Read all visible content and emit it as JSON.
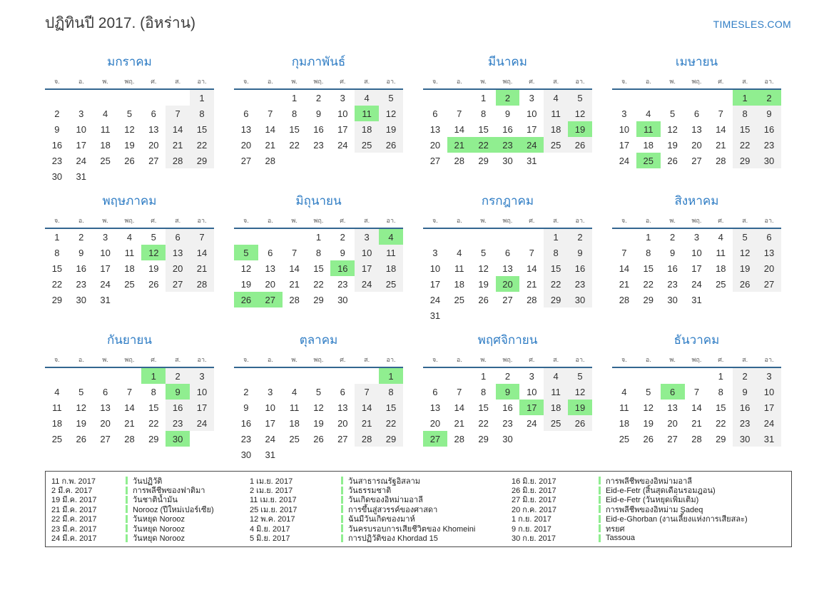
{
  "header": {
    "title": "ปฏิทินปี 2017. (อิหร่าน)",
    "site": "TIMESLES.COM"
  },
  "colors": {
    "accent_blue": "#2e7cc4",
    "header_line_blue": "#336690",
    "holiday_green": "#90ee90",
    "weekend_gray": "#f1f1f1"
  },
  "day_headers": [
    "จ.",
    "อ.",
    "พ.",
    "พฤ.",
    "ศ.",
    "ส.",
    "อา."
  ],
  "months": [
    {
      "key": "january",
      "name": "มกราคม",
      "holidays": [],
      "weeks": [
        [
          null,
          null,
          null,
          null,
          null,
          null,
          1
        ],
        [
          2,
          3,
          4,
          5,
          6,
          7,
          8
        ],
        [
          9,
          10,
          11,
          12,
          13,
          14,
          15
        ],
        [
          16,
          17,
          18,
          19,
          20,
          21,
          22
        ],
        [
          23,
          24,
          25,
          26,
          27,
          28,
          29
        ],
        [
          30,
          31,
          null,
          null,
          null,
          null,
          null
        ]
      ]
    },
    {
      "key": "february",
      "name": "กุมภาพันธ์",
      "holidays": [
        11
      ],
      "weeks": [
        [
          null,
          null,
          1,
          2,
          3,
          4,
          5
        ],
        [
          6,
          7,
          8,
          9,
          10,
          11,
          12
        ],
        [
          13,
          14,
          15,
          16,
          17,
          18,
          19
        ],
        [
          20,
          21,
          22,
          23,
          24,
          25,
          26
        ],
        [
          27,
          28,
          null,
          null,
          null,
          null,
          null
        ]
      ]
    },
    {
      "key": "march",
      "name": "มีนาคม",
      "holidays": [
        2,
        19,
        21,
        22,
        23,
        24
      ],
      "weeks": [
        [
          null,
          null,
          1,
          2,
          3,
          4,
          5
        ],
        [
          6,
          7,
          8,
          9,
          10,
          11,
          12
        ],
        [
          13,
          14,
          15,
          16,
          17,
          18,
          19
        ],
        [
          20,
          21,
          22,
          23,
          24,
          25,
          26
        ],
        [
          27,
          28,
          29,
          30,
          31,
          null,
          null
        ]
      ]
    },
    {
      "key": "april",
      "name": "เมษายน",
      "holidays": [
        1,
        2,
        11,
        25
      ],
      "weeks": [
        [
          null,
          null,
          null,
          null,
          null,
          1,
          2
        ],
        [
          3,
          4,
          5,
          6,
          7,
          8,
          9
        ],
        [
          10,
          11,
          12,
          13,
          14,
          15,
          16
        ],
        [
          17,
          18,
          19,
          20,
          21,
          22,
          23
        ],
        [
          24,
          25,
          26,
          27,
          28,
          29,
          30
        ]
      ]
    },
    {
      "key": "may",
      "name": "พฤษภาคม",
      "holidays": [
        12
      ],
      "weeks": [
        [
          1,
          2,
          3,
          4,
          5,
          6,
          7
        ],
        [
          8,
          9,
          10,
          11,
          12,
          13,
          14
        ],
        [
          15,
          16,
          17,
          18,
          19,
          20,
          21
        ],
        [
          22,
          23,
          24,
          25,
          26,
          27,
          28
        ],
        [
          29,
          30,
          31,
          null,
          null,
          null,
          null
        ]
      ]
    },
    {
      "key": "june",
      "name": "มิถุนายน",
      "holidays": [
        4,
        5,
        16,
        26,
        27
      ],
      "weeks": [
        [
          null,
          null,
          null,
          1,
          2,
          3,
          4
        ],
        [
          5,
          6,
          7,
          8,
          9,
          10,
          11
        ],
        [
          12,
          13,
          14,
          15,
          16,
          17,
          18
        ],
        [
          19,
          20,
          21,
          22,
          23,
          24,
          25
        ],
        [
          26,
          27,
          28,
          29,
          30,
          null,
          null
        ]
      ]
    },
    {
      "key": "july",
      "name": "กรกฎาคม",
      "holidays": [
        20
      ],
      "weeks": [
        [
          null,
          null,
          null,
          null,
          null,
          1,
          2
        ],
        [
          3,
          4,
          5,
          6,
          7,
          8,
          9
        ],
        [
          10,
          11,
          12,
          13,
          14,
          15,
          16
        ],
        [
          17,
          18,
          19,
          20,
          21,
          22,
          23
        ],
        [
          24,
          25,
          26,
          27,
          28,
          29,
          30
        ],
        [
          31,
          null,
          null,
          null,
          null,
          null,
          null
        ]
      ]
    },
    {
      "key": "august",
      "name": "สิงหาคม",
      "holidays": [],
      "weeks": [
        [
          null,
          1,
          2,
          3,
          4,
          5,
          6
        ],
        [
          7,
          8,
          9,
          10,
          11,
          12,
          13
        ],
        [
          14,
          15,
          16,
          17,
          18,
          19,
          20
        ],
        [
          21,
          22,
          23,
          24,
          25,
          26,
          27
        ],
        [
          28,
          29,
          30,
          31,
          null,
          null,
          null
        ]
      ]
    },
    {
      "key": "september",
      "name": "กันยายน",
      "holidays": [
        1,
        9,
        30
      ],
      "weeks": [
        [
          null,
          null,
          null,
          null,
          1,
          2,
          3
        ],
        [
          4,
          5,
          6,
          7,
          8,
          9,
          10
        ],
        [
          11,
          12,
          13,
          14,
          15,
          16,
          17
        ],
        [
          18,
          19,
          20,
          21,
          22,
          23,
          24
        ],
        [
          25,
          26,
          27,
          28,
          29,
          30,
          null
        ]
      ]
    },
    {
      "key": "october",
      "name": "ตุลาคม",
      "holidays": [
        1
      ],
      "weeks": [
        [
          null,
          null,
          null,
          null,
          null,
          null,
          1
        ],
        [
          2,
          3,
          4,
          5,
          6,
          7,
          8
        ],
        [
          9,
          10,
          11,
          12,
          13,
          14,
          15
        ],
        [
          16,
          17,
          18,
          19,
          20,
          21,
          22
        ],
        [
          23,
          24,
          25,
          26,
          27,
          28,
          29
        ],
        [
          30,
          31,
          null,
          null,
          null,
          null,
          null
        ]
      ]
    },
    {
      "key": "november",
      "name": "พฤศจิกายน",
      "holidays": [
        9,
        17,
        19,
        27
      ],
      "weeks": [
        [
          null,
          null,
          1,
          2,
          3,
          4,
          5
        ],
        [
          6,
          7,
          8,
          9,
          10,
          11,
          12
        ],
        [
          13,
          14,
          15,
          16,
          17,
          18,
          19
        ],
        [
          20,
          21,
          22,
          23,
          24,
          25,
          26
        ],
        [
          27,
          28,
          29,
          30,
          null,
          null,
          null
        ]
      ]
    },
    {
      "key": "december",
      "name": "ธันวาคม",
      "holidays": [
        6
      ],
      "weeks": [
        [
          null,
          null,
          null,
          null,
          1,
          2,
          3
        ],
        [
          4,
          5,
          6,
          7,
          8,
          9,
          10
        ],
        [
          11,
          12,
          13,
          14,
          15,
          16,
          17
        ],
        [
          18,
          19,
          20,
          21,
          22,
          23,
          24
        ],
        [
          25,
          26,
          27,
          28,
          29,
          30,
          31
        ]
      ]
    }
  ],
  "legend": {
    "columns": [
      [
        {
          "date": "11 ก.พ. 2017",
          "name": "วันปฏิวัติ"
        },
        {
          "date": "2 มี.ค. 2017",
          "name": "การพลีชีพของฟาติมา"
        },
        {
          "date": "19 มี.ค. 2017",
          "name": "วันชาติน้ำมัน"
        },
        {
          "date": "21 มี.ค. 2017",
          "name": "Norooz (ปีใหม่เปอร์เซีย)"
        },
        {
          "date": "22 มี.ค. 2017",
          "name": "วันหยุด Norooz"
        },
        {
          "date": "23 มี.ค. 2017",
          "name": "วันหยุด Norooz"
        },
        {
          "date": "24 มี.ค. 2017",
          "name": "วันหยุด Norooz"
        }
      ],
      [
        {
          "date": "1 เม.ย. 2017",
          "name": "วันสาธารณรัฐอิสลาม"
        },
        {
          "date": "2 เม.ย. 2017",
          "name": "วันธรรมชาติ"
        },
        {
          "date": "11 เม.ย. 2017",
          "name": "วันเกิดของอิหม่ามอาลี"
        },
        {
          "date": "25 เม.ย. 2017",
          "name": "การขึ้นสู่สวรรค์ของศาสดา"
        },
        {
          "date": "12 พ.ค. 2017",
          "name": "ฉันมีวันเกิดของมาห์"
        },
        {
          "date": "4 มิ.ย. 2017",
          "name": "วันครบรอบการเสียชีวิตของ Khomeini"
        },
        {
          "date": "5 มิ.ย. 2017",
          "name": "การปฏิวัติของ Khordad 15"
        }
      ],
      [
        {
          "date": "16 มิ.ย. 2017",
          "name": "การพลีชีพของอิหม่ามอาลี"
        },
        {
          "date": "26 มิ.ย. 2017",
          "name": "Eid-e-Fetr (สิ้นสุดเดือนรอมฎอน)"
        },
        {
          "date": "27 มิ.ย. 2017",
          "name": "Eid-e-Fetr (วันหยุดเพิ่มเติม)"
        },
        {
          "date": "20 ก.ค. 2017",
          "name": "การพลีชีพของอิหม่าม Şadeq"
        },
        {
          "date": "1 ก.ย. 2017",
          "name": "Eid-e-Ghorban (งานเลี้ยงแห่งการเสียสละ)"
        },
        {
          "date": "9 ก.ย. 2017",
          "name": "ทรยศ"
        },
        {
          "date": "30 ก.ย. 2017",
          "name": "Tassoua"
        }
      ]
    ]
  }
}
